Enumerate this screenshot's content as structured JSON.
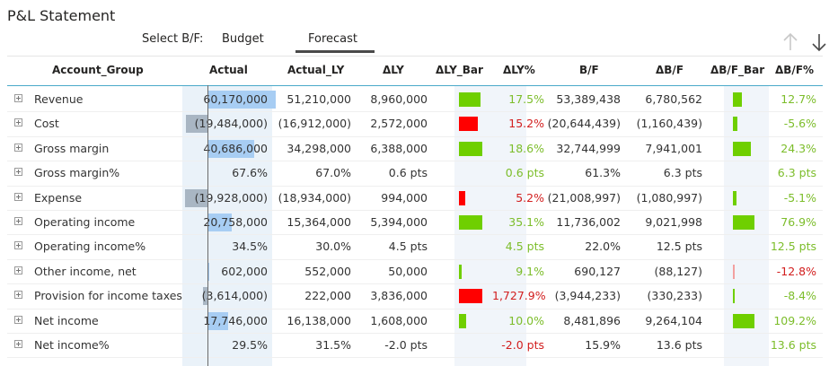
{
  "title": "P&L Statement",
  "selector": {
    "label": "Select B/F:",
    "options": [
      "Budget",
      "Forecast"
    ],
    "selected": "Forecast"
  },
  "icons": {
    "sort_up": "arrow-up-icon",
    "sort_down": "arrow-down-icon"
  },
  "colors": {
    "positive": "#7cbd2a",
    "negative": "#d21e1e",
    "bar_green": "#6fcf00",
    "bar_red": "#ff0000",
    "actual_bar": "#a7cdf3"
  },
  "columns": [
    "Account_Group",
    "Actual",
    "Actual_LY",
    "ΔLY",
    "ΔLY_Bar",
    "ΔLY%",
    "B/F",
    "ΔB/F",
    "ΔB/F_Bar",
    "ΔB/F%"
  ],
  "rows": [
    {
      "name": "Revenue",
      "actual": "60,170,000",
      "actual_ly": "51,210,000",
      "dly": "8,960,000",
      "dly_pct": "17.5%",
      "dly_pct_sign": "pos",
      "bf": "53,389,438",
      "dbf": "6,780,562",
      "dbf_pct": "12.7%",
      "dbf_pct_sign": "pos",
      "actual_val": 60170000,
      "dly_bar": 17.5,
      "dbf_bar": 12.7
    },
    {
      "name": "Cost",
      "actual": "(19,484,000)",
      "actual_ly": "(16,912,000)",
      "dly": "2,572,000",
      "dly_pct": "15.2%",
      "dly_pct_sign": "neg",
      "bf": "(20,644,439)",
      "dbf": "(1,160,439)",
      "dbf_pct": "-5.6%",
      "dbf_pct_sign": "pos",
      "actual_val": -19484000,
      "dly_bar": -15.2,
      "dbf_bar": 5.6
    },
    {
      "name": "Gross margin",
      "actual": "40,686,000",
      "actual_ly": "34,298,000",
      "dly": "6,388,000",
      "dly_pct": "18.6%",
      "dly_pct_sign": "pos",
      "bf": "32,744,999",
      "dbf": "7,941,001",
      "dbf_pct": "24.3%",
      "dbf_pct_sign": "pos",
      "actual_val": 40686000,
      "dly_bar": 18.6,
      "dbf_bar": 24.3
    },
    {
      "name": "Gross margin%",
      "actual": "67.6%",
      "actual_ly": "67.0%",
      "dly": "0.6 pts",
      "dly_pct": "0.6 pts",
      "dly_pct_sign": "pos",
      "bf": "61.3%",
      "dbf": "6.3 pts",
      "dbf_pct": "6.3 pts",
      "dbf_pct_sign": "pos",
      "actual_val": 0,
      "dly_bar": 0,
      "dbf_bar": 0
    },
    {
      "name": "Expense",
      "actual": "(19,928,000)",
      "actual_ly": "(18,934,000)",
      "dly": "994,000",
      "dly_pct": "5.2%",
      "dly_pct_sign": "neg",
      "bf": "(21,008,997)",
      "dbf": "(1,080,997)",
      "dbf_pct": "-5.1%",
      "dbf_pct_sign": "pos",
      "actual_val": -19928000,
      "dly_bar": -5.2,
      "dbf_bar": 5.1
    },
    {
      "name": "Operating income",
      "actual": "20,758,000",
      "actual_ly": "15,364,000",
      "dly": "5,394,000",
      "dly_pct": "35.1%",
      "dly_pct_sign": "pos",
      "bf": "11,736,002",
      "dbf": "9,021,998",
      "dbf_pct": "76.9%",
      "dbf_pct_sign": "pos",
      "actual_val": 20758000,
      "dly_bar": 35.1,
      "dbf_bar": 76.9
    },
    {
      "name": "Operating income%",
      "actual": "34.5%",
      "actual_ly": "30.0%",
      "dly": "4.5 pts",
      "dly_pct": "4.5 pts",
      "dly_pct_sign": "pos",
      "bf": "22.0%",
      "dbf": "12.5 pts",
      "dbf_pct": "12.5 pts",
      "dbf_pct_sign": "pos",
      "actual_val": 0,
      "dly_bar": 0,
      "dbf_bar": 0
    },
    {
      "name": "Other income, net",
      "actual": "602,000",
      "actual_ly": "552,000",
      "dly": "50,000",
      "dly_pct": "9.1%",
      "dly_pct_sign": "pos",
      "bf": "690,127",
      "dbf": "(88,127)",
      "dbf_pct": "-12.8%",
      "dbf_pct_sign": "neg",
      "actual_val": 602000,
      "dly_bar": 0.5,
      "dbf_bar": -0.5
    },
    {
      "name": "Provision for income taxes",
      "actual": "(3,614,000)",
      "actual_ly": "222,000",
      "dly": "3,836,000",
      "dly_pct": "1,727.9%",
      "dly_pct_sign": "neg",
      "bf": "(3,944,233)",
      "dbf": "(330,233)",
      "dbf_pct": "-8.4%",
      "dbf_pct_sign": "pos",
      "actual_val": -3614000,
      "dly_bar": -25,
      "dbf_bar": 2
    },
    {
      "name": "Net income",
      "actual": "17,746,000",
      "actual_ly": "16,138,000",
      "dly": "1,608,000",
      "dly_pct": "10.0%",
      "dly_pct_sign": "pos",
      "bf": "8,481,896",
      "dbf": "9,264,104",
      "dbf_pct": "109.2%",
      "dbf_pct_sign": "pos",
      "actual_val": 17746000,
      "dly_bar": 6,
      "dbf_bar": 109.2
    },
    {
      "name": "Net income%",
      "actual": "29.5%",
      "actual_ly": "31.5%",
      "dly": "-2.0 pts",
      "dly_pct": "-2.0 pts",
      "dly_pct_sign": "neg",
      "bf": "15.9%",
      "dbf": "13.6 pts",
      "dbf_pct": "13.6 pts",
      "dbf_pct_sign": "pos",
      "actual_val": 0,
      "dly_bar": 0,
      "dbf_bar": 0
    }
  ]
}
